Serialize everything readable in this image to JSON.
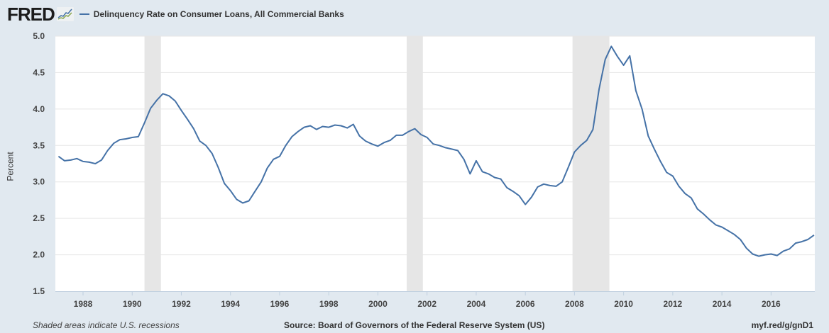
{
  "header": {
    "logo": "FRED",
    "logo_icon": "line-graph-icon",
    "series_title": "Delinquency Rate on Consumer Loans, All Commercial Banks",
    "series_color": "#4572a7"
  },
  "footer": {
    "recession_note": "Shaded areas indicate U.S. recessions",
    "source": "Source: Board of Governors of the Federal Reserve System (US)",
    "short_url": "myf.red/g/gnD1"
  },
  "chart_data": {
    "type": "line",
    "title": "Delinquency Rate on Consumer Loans, All Commercial Banks",
    "xlabel": "",
    "ylabel": "Percent",
    "ylim": [
      1.5,
      5.0
    ],
    "xlim": [
      1987.0,
      2017.5
    ],
    "yticks": [
      1.5,
      2.0,
      2.5,
      3.0,
      3.5,
      4.0,
      4.5,
      5.0
    ],
    "ytick_labels": [
      "1.5",
      "2.0",
      "2.5",
      "3.0",
      "3.5",
      "4.0",
      "4.5",
      "5.0"
    ],
    "xticks": [
      1988,
      1990,
      1992,
      1994,
      1996,
      1998,
      2000,
      2002,
      2004,
      2006,
      2008,
      2010,
      2012,
      2014,
      2016
    ],
    "xtick_labels": [
      "1988",
      "1990",
      "1992",
      "1994",
      "1996",
      "1998",
      "2000",
      "2002",
      "2004",
      "2006",
      "2008",
      "2010",
      "2012",
      "2014",
      "2016"
    ],
    "grid": "horizontal",
    "legend_position": "top-left",
    "recessions": [
      {
        "start": 1990.5,
        "end": 1991.17
      },
      {
        "start": 2001.17,
        "end": 2001.83
      },
      {
        "start": 2007.92,
        "end": 2009.42
      }
    ],
    "frequency": "quarterly",
    "series": [
      {
        "name": "Delinquency Rate on Consumer Loans, All Commercial Banks",
        "color": "#4572a7",
        "start": 1987.0,
        "step": 0.25,
        "values": [
          3.35,
          3.29,
          3.3,
          3.32,
          3.28,
          3.27,
          3.25,
          3.3,
          3.43,
          3.53,
          3.58,
          3.59,
          3.61,
          3.62,
          3.81,
          4.01,
          4.12,
          4.21,
          4.18,
          4.11,
          3.98,
          3.86,
          3.73,
          3.56,
          3.5,
          3.39,
          3.2,
          2.98,
          2.88,
          2.76,
          2.71,
          2.74,
          2.87,
          3.0,
          3.19,
          3.31,
          3.35,
          3.5,
          3.62,
          3.69,
          3.75,
          3.77,
          3.72,
          3.76,
          3.75,
          3.78,
          3.77,
          3.74,
          3.79,
          3.63,
          3.56,
          3.52,
          3.49,
          3.54,
          3.57,
          3.64,
          3.64,
          3.69,
          3.73,
          3.65,
          3.61,
          3.52,
          3.5,
          3.47,
          3.45,
          3.43,
          3.31,
          3.11,
          3.29,
          3.14,
          3.11,
          3.06,
          3.04,
          2.92,
          2.87,
          2.81,
          2.69,
          2.79,
          2.93,
          2.97,
          2.95,
          2.94,
          3.0,
          3.2,
          3.41,
          3.5,
          3.57,
          3.72,
          4.27,
          4.68,
          4.86,
          4.72,
          4.6,
          4.73,
          4.25,
          4.0,
          3.63,
          3.45,
          3.28,
          3.13,
          3.08,
          2.94,
          2.84,
          2.78,
          2.63,
          2.56,
          2.48,
          2.41,
          2.38,
          2.33,
          2.28,
          2.21,
          2.09,
          2.01,
          1.98,
          2.0,
          2.01,
          1.99,
          2.05,
          2.08,
          2.16,
          2.18,
          2.21,
          2.27
        ]
      }
    ]
  }
}
